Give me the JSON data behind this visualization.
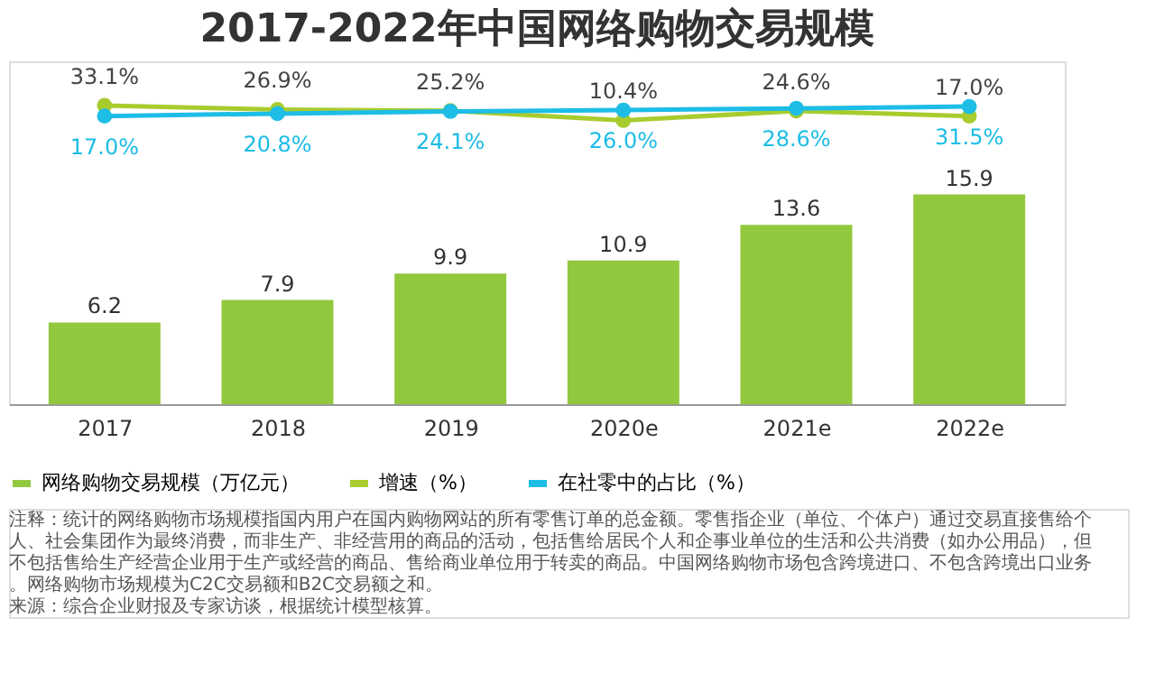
{
  "chart_data": {
    "type": "bar",
    "title": "2017-2022年中国网络购物交易规模",
    "categories": [
      "2017",
      "2018",
      "2019",
      "2020e",
      "2021e",
      "2022e"
    ],
    "series": [
      {
        "name": "网络购物交易规模（万亿元）",
        "color": "#92c83e",
        "values": [
          6.2,
          7.9,
          9.9,
          10.9,
          13.6,
          15.9
        ]
      },
      {
        "name": "增速（%）",
        "type": "line",
        "axis": "y2",
        "color": "#a8cc2e",
        "values": [
          33.1,
          26.9,
          25.2,
          10.4,
          24.6,
          17.0
        ],
        "value_labels": [
          "33.1%",
          "26.9%",
          "25.2%",
          "10.4%",
          "24.6%",
          "17.0%"
        ]
      },
      {
        "name": "在社零中的占比（%）",
        "type": "line",
        "axis": "y2",
        "color": "#1dbde6",
        "values": [
          17.0,
          20.8,
          24.1,
          26.0,
          28.6,
          31.5
        ],
        "value_labels": [
          "17.0%",
          "20.8%",
          "24.1%",
          "26.0%",
          "28.6%",
          "31.5%"
        ]
      }
    ],
    "data_labels": true,
    "ylim": [
      0,
      26
    ],
    "y2lim": [
      -420,
      100
    ],
    "tick_labels": "x",
    "marker": "circle",
    "legend": "bottom",
    "grid": false,
    "annotations": [
      "注释：统计的网络购物市场规模指国内用户在国内购物网站的所有零售订单的总金额。零售指企业（单位、个体户）通过交易直接售给个人、社会集团作为最终消费，而非生产、非经营用的商品的活动，包括售给居民个人和企事业单位的生活和公共消费（如办公用品），但不包括售给生产经营企业用于生产或经营的商品、售给商业单位用于转卖的商品。中国网络购物市场包含跨境进口、不包含跨境出口业务。网络购物市场规模为C2C交易额和B2C交易额之和。",
      "来源：综合企业财报及专家访谈，根据统计模型核算。"
    ]
  }
}
